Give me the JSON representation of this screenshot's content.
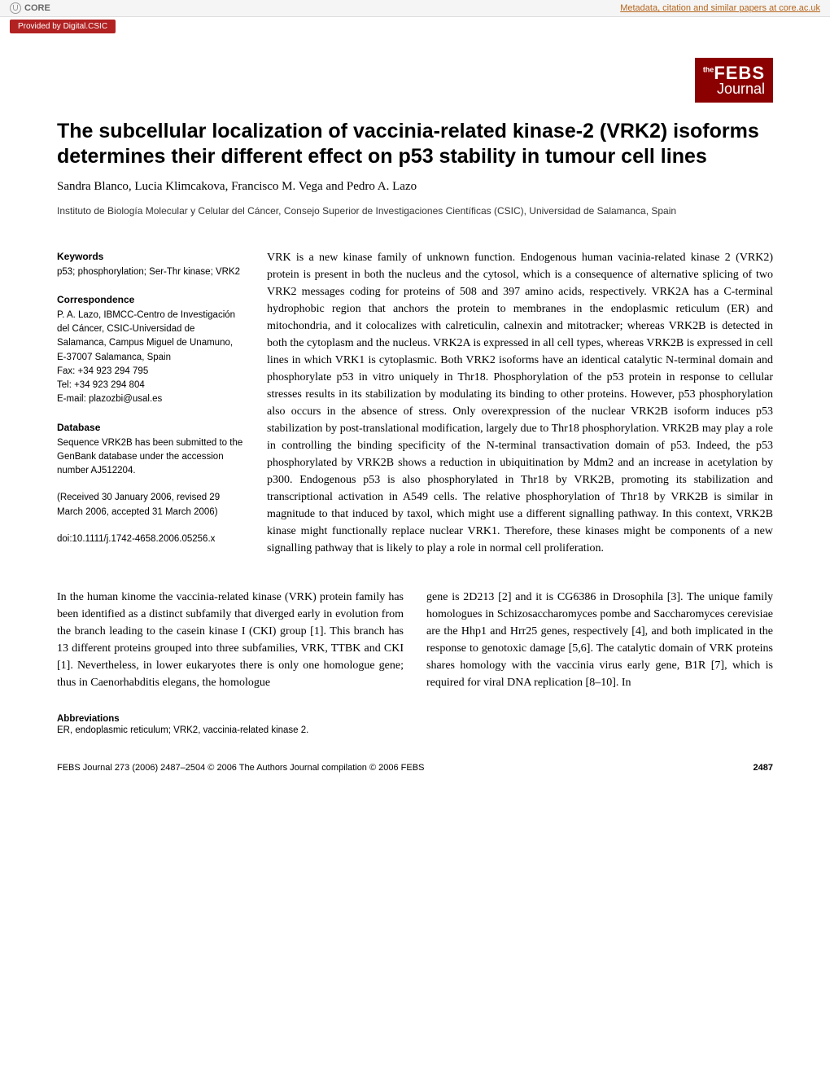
{
  "core_banner": {
    "logo_text": "CORE",
    "link_text": "Metadata, citation and similar papers at core.ac.uk",
    "provided_by": "Provided by Digital.CSIC"
  },
  "journal_logo": {
    "the": "the",
    "febs": "FEBS",
    "journal": "Journal"
  },
  "title": "The subcellular localization of vaccinia-related kinase-2 (VRK2) isoforms determines their different effect on p53 stability in tumour cell lines",
  "authors": "Sandra Blanco, Lucia Klimcakova, Francisco M. Vega and Pedro A. Lazo",
  "affiliation": "Instituto de Biología Molecular y Celular del Cáncer, Consejo Superior de Investigaciones Científicas (CSIC), Universidad de Salamanca, Spain",
  "sidebar": {
    "keywords": {
      "heading": "Keywords",
      "text": "p53; phosphorylation; Ser-Thr kinase; VRK2"
    },
    "correspondence": {
      "heading": "Correspondence",
      "text": "P. A. Lazo, IBMCC-Centro de Investigación del Cáncer, CSIC-Universidad de Salamanca, Campus Miguel de Unamuno, E-37007 Salamanca, Spain",
      "fax": "Fax: +34 923 294 795",
      "tel": "Tel: +34 923 294 804",
      "email": "E-mail: plazozbi@usal.es"
    },
    "database": {
      "heading": "Database",
      "text": "Sequence VRK2B has been submitted to the GenBank database under the accession number AJ512204."
    },
    "received": "(Received 30 January 2006, revised 29 March 2006, accepted 31 March 2006)",
    "doi": "doi:10.1111/j.1742-4658.2006.05256.x"
  },
  "abstract": "VRK is a new kinase family of unknown function. Endogenous human vacinia-related kinase 2 (VRK2) protein is present in both the nucleus and the cytosol, which is a consequence of alternative splicing of two VRK2 messages coding for proteins of 508 and 397 amino acids, respectively. VRK2A has a C-terminal hydrophobic region that anchors the protein to membranes in the endoplasmic reticulum (ER) and mitochondria, and it colocalizes with calreticulin, calnexin and mitotracker; whereas VRK2B is detected in both the cytoplasm and the nucleus. VRK2A is expressed in all cell types, whereas VRK2B is expressed in cell lines in which VRK1 is cytoplasmic. Both VRK2 isoforms have an identical catalytic N-terminal domain and phosphorylate p53 in vitro uniquely in Thr18. Phosphorylation of the p53 protein in response to cellular stresses results in its stabilization by modulating its binding to other proteins. However, p53 phosphorylation also occurs in the absence of stress. Only overexpression of the nuclear VRK2B isoform induces p53 stabilization by post-translational modification, largely due to Thr18 phosphorylation. VRK2B may play a role in controlling the binding specificity of the N-terminal transactivation domain of p53. Indeed, the p53 phosphorylated by VRK2B shows a reduction in ubiquitination by Mdm2 and an increase in acetylation by p300. Endogenous p53 is also phosphorylated in Thr18 by VRK2B, promoting its stabilization and transcriptional activation in A549 cells. The relative phosphorylation of Thr18 by VRK2B is similar in magnitude to that induced by taxol, which might use a different signalling pathway. In this context, VRK2B kinase might functionally replace nuclear VRK1. Therefore, these kinases might be components of a new signalling pathway that is likely to play a role in normal cell proliferation.",
  "body": {
    "col1": "In the human kinome the vaccinia-related kinase (VRK) protein family has been identified as a distinct subfamily that diverged early in evolution from the branch leading to the casein kinase I (CKI) group [1]. This branch has 13 different proteins grouped into three subfamilies, VRK, TTBK and CKI [1]. Nevertheless, in lower eukaryotes there is only one homologue gene; thus in Caenorhabditis elegans, the homologue",
    "col2": "gene is 2D213 [2] and it is CG6386 in Drosophila [3]. The unique family homologues in Schizosaccharomyces pombe and Saccharomyces cerevisiae are the Hhp1 and Hrr25 genes, respectively [4], and both implicated in the response to genotoxic damage [5,6].\n  The catalytic domain of VRK proteins shares homology with the vaccinia virus early gene, B1R [7], which is required for viral DNA replication [8–10]. In"
  },
  "abbreviations": {
    "heading": "Abbreviations",
    "text": "ER, endoplasmic reticulum; VRK2, vaccinia-related kinase 2."
  },
  "footer": {
    "left": "FEBS Journal 273 (2006) 2487–2504 © 2006 The Authors Journal compilation © 2006 FEBS",
    "page": "2487"
  }
}
